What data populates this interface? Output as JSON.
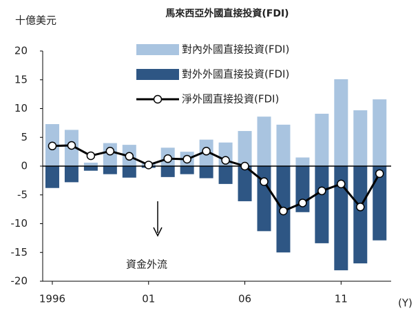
{
  "chart_data": {
    "type": "bar_line",
    "title": "馬來西亞外國直接投資(FDI)",
    "y_label": "十億美元",
    "x_label": "(Y)",
    "annotation": "資金外流",
    "x": [
      1996,
      1997,
      1998,
      1999,
      2000,
      2001,
      2002,
      2003,
      2004,
      2005,
      2006,
      2007,
      2008,
      2009,
      2010,
      2011,
      2012,
      2013
    ],
    "series": [
      {
        "name": "對內外國直接投資(FDI)",
        "color": "#a9c4e0",
        "kind": "bar",
        "values": [
          7.3,
          6.3,
          0.6,
          4.0,
          3.7,
          0.5,
          3.2,
          2.5,
          4.6,
          4.1,
          6.1,
          8.6,
          7.2,
          1.5,
          9.1,
          15.1,
          9.7,
          11.6
        ]
      },
      {
        "name": "對外外國直接投資(FDI)",
        "color": "#2e5684",
        "kind": "bar",
        "values": [
          -3.8,
          -2.8,
          -0.8,
          -1.4,
          -2.0,
          -0.3,
          -1.9,
          -1.4,
          -2.1,
          -3.1,
          -6.1,
          -11.3,
          -15.0,
          -8.0,
          -13.4,
          -18.1,
          -16.9,
          -12.9
        ]
      },
      {
        "name": "淨外國直接投資(FDI)",
        "color": "#000000",
        "kind": "line",
        "values": [
          3.5,
          3.6,
          1.8,
          2.6,
          1.7,
          0.2,
          1.3,
          1.2,
          2.6,
          1.0,
          0.0,
          -2.7,
          -7.8,
          -6.4,
          -4.3,
          -3.1,
          -7.1,
          -1.3
        ]
      }
    ],
    "xlim": [
      1995.5,
      2013.6
    ],
    "xticks": [
      {
        "value": 1996,
        "label": "1996"
      },
      {
        "value": 2001,
        "label": "01"
      },
      {
        "value": 2006,
        "label": "06"
      },
      {
        "value": 2011,
        "label": "11"
      }
    ],
    "ylim": [
      -20,
      20
    ],
    "yticks": [
      -20,
      -15,
      -10,
      -5,
      0,
      5,
      10,
      15,
      20
    ]
  }
}
